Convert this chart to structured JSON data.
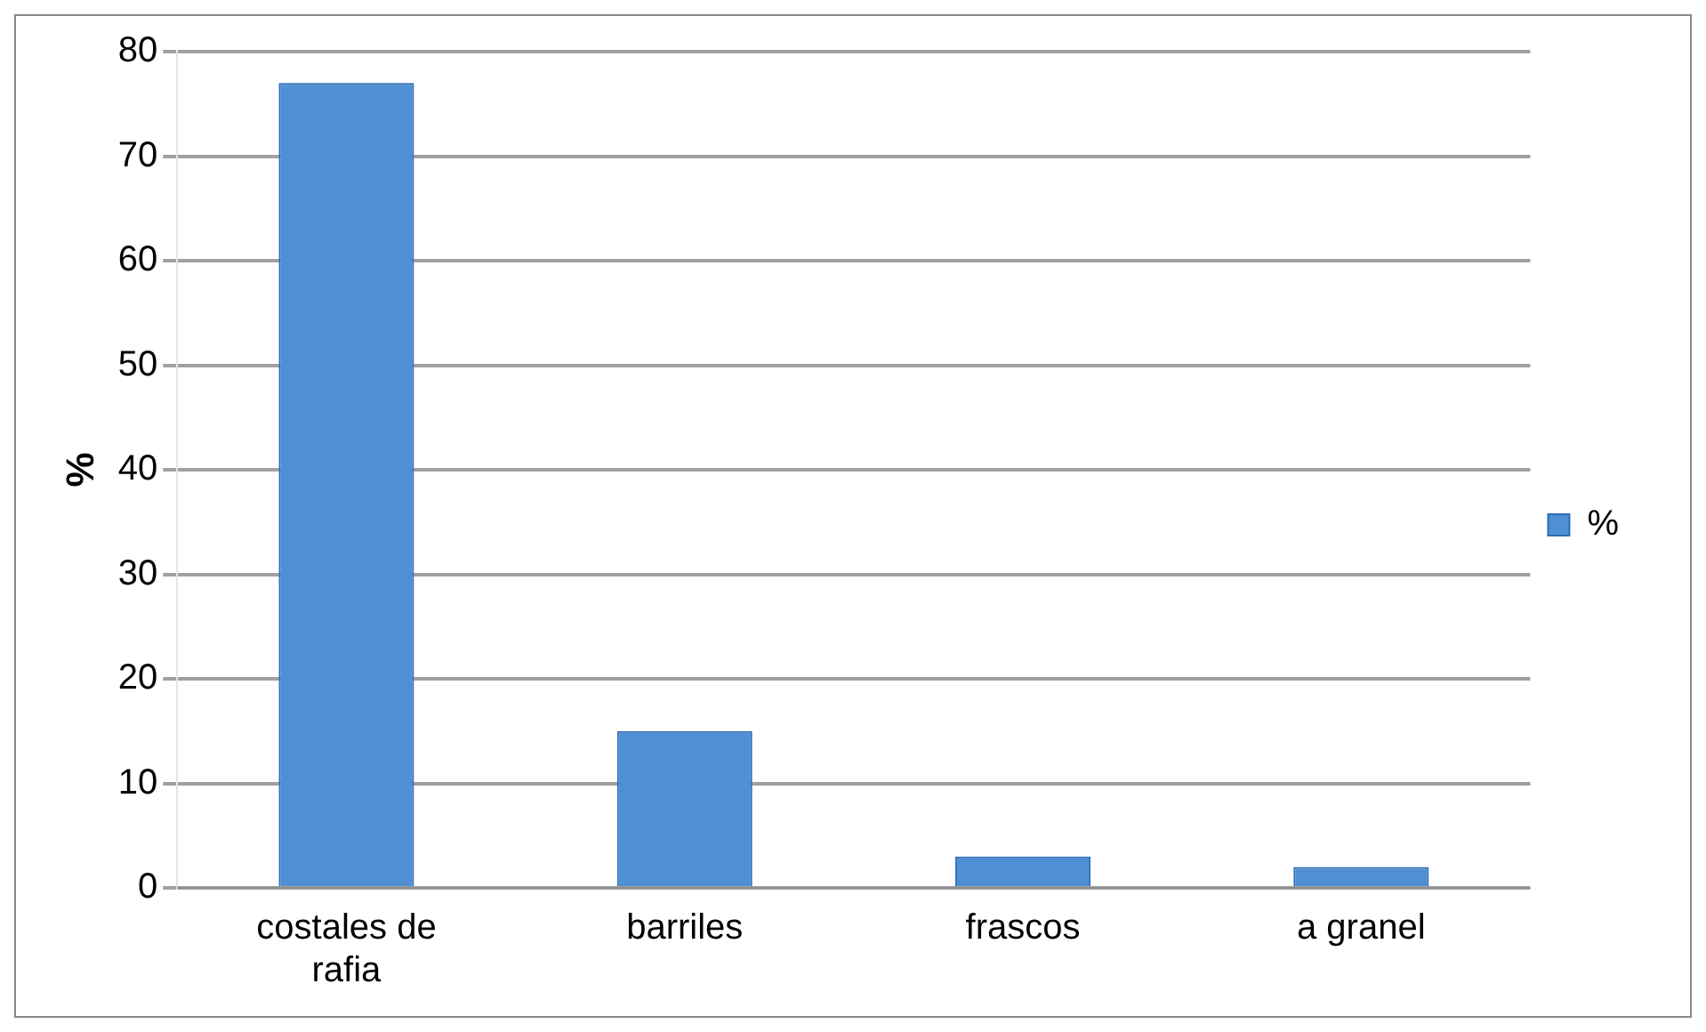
{
  "chart_data": {
    "type": "bar",
    "ylabel": "%",
    "categories": [
      "costales de rafia",
      "barriles",
      "frascos",
      "a granel"
    ],
    "series": [
      {
        "name": "%",
        "color": "#4f8fd4",
        "values": [
          77,
          15,
          3,
          2
        ]
      }
    ],
    "ylim": [
      0,
      80
    ],
    "yticks": [
      0,
      10,
      20,
      30,
      40,
      50,
      60,
      70,
      80
    ],
    "grid": "y",
    "legend": "right"
  }
}
